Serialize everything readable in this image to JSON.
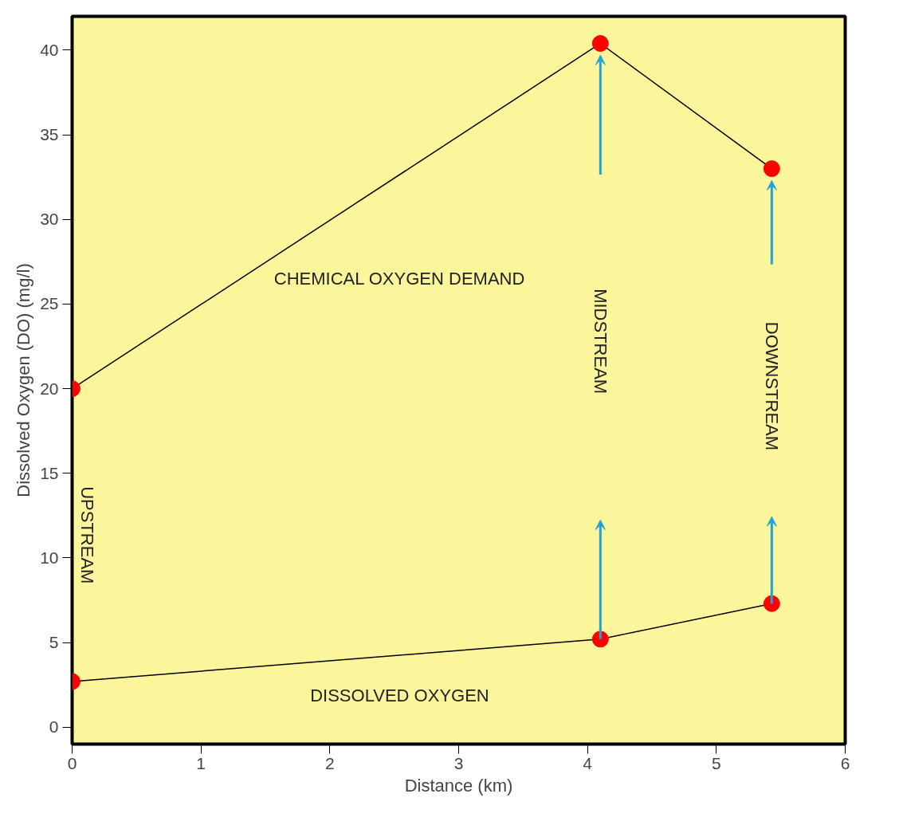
{
  "chart_data": {
    "type": "line",
    "xlabel": "Distance (km)",
    "ylabel": "Dissolved Oxygen (DO) (mg/l)",
    "x": [
      0,
      4.1,
      5.43
    ],
    "series": [
      {
        "name": "CHEMICAL OXYGEN DEMAND",
        "color": "#000000",
        "values": [
          20,
          40.4,
          33.0
        ]
      },
      {
        "name": "DISSOLVED OXYGEN",
        "color": "#000000",
        "values": [
          2.7,
          5.2,
          7.3
        ]
      }
    ],
    "marker": "circle",
    "xlim": [
      0,
      6
    ],
    "xticks": [
      0,
      1,
      2,
      3,
      4,
      5,
      6
    ],
    "ylim": [
      -1,
      42
    ],
    "yticks": [
      0,
      5,
      10,
      15,
      20,
      25,
      30,
      35,
      40
    ],
    "annotations": [
      "UPSTREAM",
      "MIDSTREAM",
      "DOWNSTREAM"
    ],
    "grid": false
  }
}
